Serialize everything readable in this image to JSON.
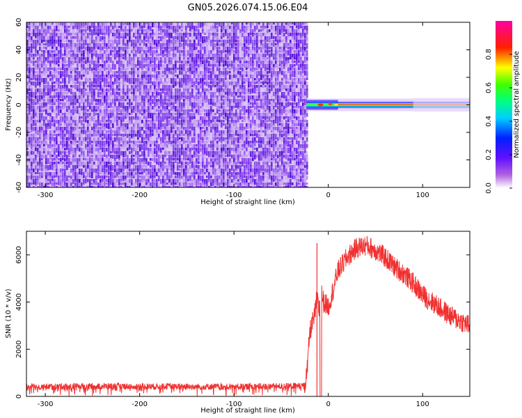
{
  "title": "GN05.2026.074.15.06.E04",
  "chart_data": [
    {
      "type": "heatmap",
      "xlabel": "Height of straight line (km)",
      "ylabel": "Frequency (Hz)",
      "xlim": [
        -320,
        150
      ],
      "ylim": [
        -60,
        60
      ],
      "x_ticks": [
        -300,
        -200,
        -100,
        0,
        100
      ],
      "x_tick_labels": [
        "-300",
        "-200",
        "-100",
        "0",
        "100"
      ],
      "y_ticks": [
        -60,
        -40,
        -20,
        0,
        20,
        40,
        60
      ],
      "y_tick_labels": [
        "-60",
        "-40",
        "-20",
        "0",
        "20",
        "40",
        "60"
      ],
      "noise_region_x": [
        -320,
        -23
      ],
      "carrier_start_x": -23,
      "carrier_frequency": 0,
      "colorbar": {
        "label": "Normalized spectral amplitude",
        "range": [
          0,
          1
        ],
        "ticks": [
          0.0,
          0.2,
          0.4,
          0.6,
          0.8
        ],
        "tick_labels": [
          "0.0",
          "0.2",
          "0.4",
          "0.6",
          "0.8"
        ],
        "colormap": "rainbow",
        "colors": [
          "#ffffff",
          "#8a2be2",
          "#0000ff",
          "#00ffff",
          "#00ff00",
          "#ffff00",
          "#ff0000",
          "#ff00ff"
        ]
      },
      "noise_color": "#7f3fe0"
    },
    {
      "type": "line",
      "xlabel": "Height of straight line (km)",
      "ylabel": "SNR (10 * v/v)",
      "xlim": [
        -320,
        150
      ],
      "ylim": [
        0,
        7000
      ],
      "x_ticks": [
        -300,
        -200,
        -100,
        0,
        100
      ],
      "x_tick_labels": [
        "-300",
        "-200",
        "-100",
        "0",
        "100"
      ],
      "y_ticks": [
        0,
        2000,
        4000,
        6000
      ],
      "y_tick_labels": [
        "0",
        "2000",
        "4000",
        "6000"
      ],
      "series": [
        {
          "color": "#f03030",
          "x": [
            -320,
            -300,
            -250,
            -200,
            -150,
            -100,
            -50,
            -25,
            -22,
            -20,
            -18,
            -15,
            -12,
            -10,
            -8,
            -5,
            0,
            5,
            10,
            20,
            30,
            40,
            50,
            60,
            70,
            80,
            90,
            100,
            110,
            120,
            130,
            140,
            150
          ],
          "y": [
            400,
            420,
            430,
            420,
            420,
            410,
            430,
            450,
            1200,
            2600,
            3000,
            3300,
            4200,
            3600,
            4500,
            4000,
            3800,
            4500,
            5300,
            5900,
            6300,
            6400,
            6200,
            5900,
            5500,
            5200,
            4800,
            4300,
            4000,
            3700,
            3400,
            3200,
            3000
          ],
          "noise_amplitude_before": 150,
          "noise_amplitude_after": 450,
          "dropout_x": -8
        }
      ]
    }
  ]
}
